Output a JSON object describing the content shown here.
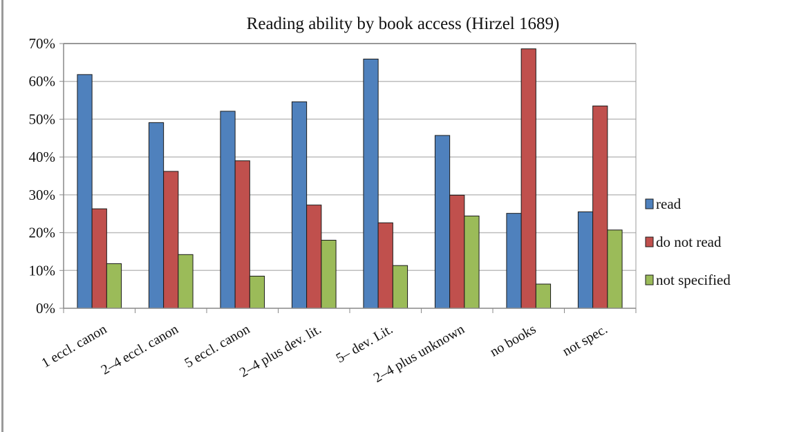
{
  "chart_data": {
    "type": "bar",
    "title": "Reading ability by book access (Hirzel 1689)",
    "xlabel": "",
    "ylabel": "",
    "ylim": [
      0,
      70
    ],
    "yticks": [
      "0%",
      "10%",
      "20%",
      "30%",
      "40%",
      "50%",
      "60%",
      "70%"
    ],
    "grid": true,
    "legend": "right",
    "categories": [
      "1 eccl. canon",
      "2–4 eccl. canon",
      "5 eccl. canon",
      "2–4 plus dev. lit.",
      "5– dev. Lit.",
      "2–4 plus unknown",
      "no books",
      "not spec."
    ],
    "series": [
      {
        "name": "read",
        "color": "#4f81bd",
        "values": [
          61.8,
          49.1,
          52.1,
          54.6,
          65.9,
          45.7,
          25.1,
          25.5
        ]
      },
      {
        "name": "do not read",
        "color": "#c0504d",
        "values": [
          26.3,
          36.2,
          39.0,
          27.3,
          22.6,
          29.9,
          68.6,
          53.5
        ]
      },
      {
        "name": "not specified",
        "color": "#9bbb59",
        "values": [
          11.8,
          14.2,
          8.5,
          18.0,
          11.3,
          24.4,
          6.4,
          20.7
        ]
      }
    ]
  }
}
